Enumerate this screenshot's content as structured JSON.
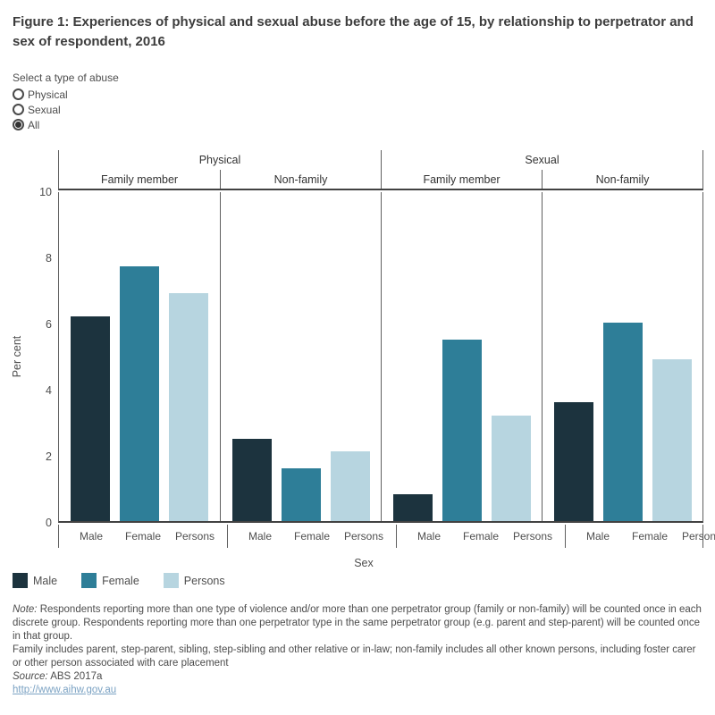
{
  "title": "Figure 1: Experiences of physical and sexual abuse before the age of 15, by relationship to perpetrator and sex of respondent, 2016",
  "filter": {
    "label": "Select a type of abuse",
    "options": [
      {
        "label": "Physical",
        "selected": false
      },
      {
        "label": "Sexual",
        "selected": false
      },
      {
        "label": "All",
        "selected": true
      }
    ]
  },
  "chart_data": {
    "type": "bar",
    "title": "Experiences of physical and sexual abuse before the age of 15, by relationship to perpetrator and sex of respondent, 2016",
    "xlabel": "Sex",
    "ylabel": "Per cent",
    "ylim": [
      0,
      10
    ],
    "yticks": [
      0,
      2,
      4,
      6,
      8,
      10
    ],
    "grid": false,
    "legend_position": "bottom-left",
    "top_headers": [
      "Physical",
      "Sexual"
    ],
    "categories": [
      "Male",
      "Female",
      "Persons"
    ],
    "groups": [
      {
        "abuse_type": "Physical",
        "relationship": "Family member",
        "values": [
          6.2,
          7.7,
          6.9
        ]
      },
      {
        "abuse_type": "Physical",
        "relationship": "Non-family",
        "values": [
          2.5,
          1.6,
          2.1
        ]
      },
      {
        "abuse_type": "Sexual",
        "relationship": "Family member",
        "values": [
          0.8,
          5.5,
          3.2
        ]
      },
      {
        "abuse_type": "Sexual",
        "relationship": "Non-family",
        "values": [
          3.6,
          6.0,
          4.9
        ]
      }
    ],
    "legend": [
      {
        "label": "Male",
        "color": "#1c333e"
      },
      {
        "label": "Female",
        "color": "#2e7e98"
      },
      {
        "label": "Persons",
        "color": "#b7d5e0"
      }
    ]
  },
  "notes": {
    "note_label": "Note:",
    "note_text": " Respondents reporting more than one type of violence and/or more than one perpetrator group (family or non-family) will be counted once in each discrete group. Respondents reporting more than one perpetrator type in the same perpetrator group (e.g. parent and step-parent) will be counted once in that group.",
    "family_text": "Family includes parent, step-parent, sibling, step-sibling and other relative or in-law; non-family includes all other known persons, including foster carer or other person associated with care placement",
    "source_label": "Source:",
    "source_text": " ABS 2017a",
    "link": "http://www.aihw.gov.au"
  }
}
